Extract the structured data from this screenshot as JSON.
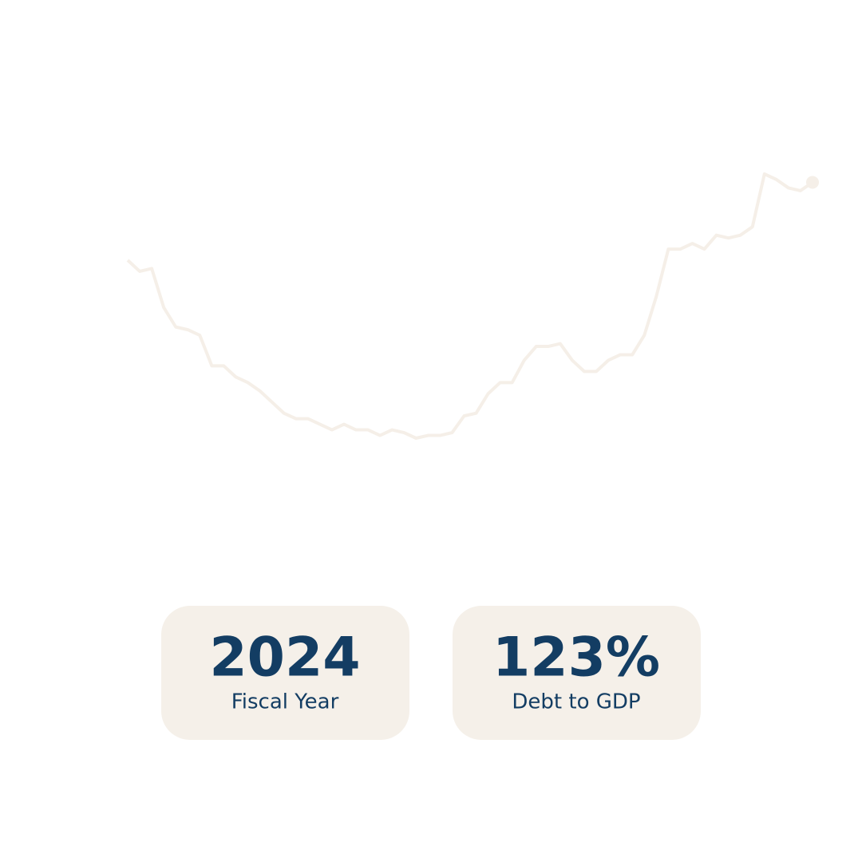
{
  "chart_data": {
    "type": "line",
    "color": "#f5efe8",
    "values": [
      95,
      91,
      92,
      78,
      71,
      70,
      68,
      57,
      57,
      53,
      51,
      48,
      44,
      40,
      38,
      38,
      36,
      34,
      36,
      34,
      34,
      32,
      34,
      33,
      31,
      32,
      32,
      33,
      39,
      40,
      47,
      51,
      51,
      59,
      64,
      64,
      65,
      59,
      55,
      55,
      59,
      61,
      61,
      68,
      82,
      99,
      99,
      101,
      99,
      104,
      103,
      104,
      107,
      126,
      124,
      121,
      120,
      123
    ]
  },
  "stats": [
    {
      "value": "2024",
      "label": "Fiscal Year"
    },
    {
      "value": "123%",
      "label": "Debt to GDP"
    }
  ]
}
